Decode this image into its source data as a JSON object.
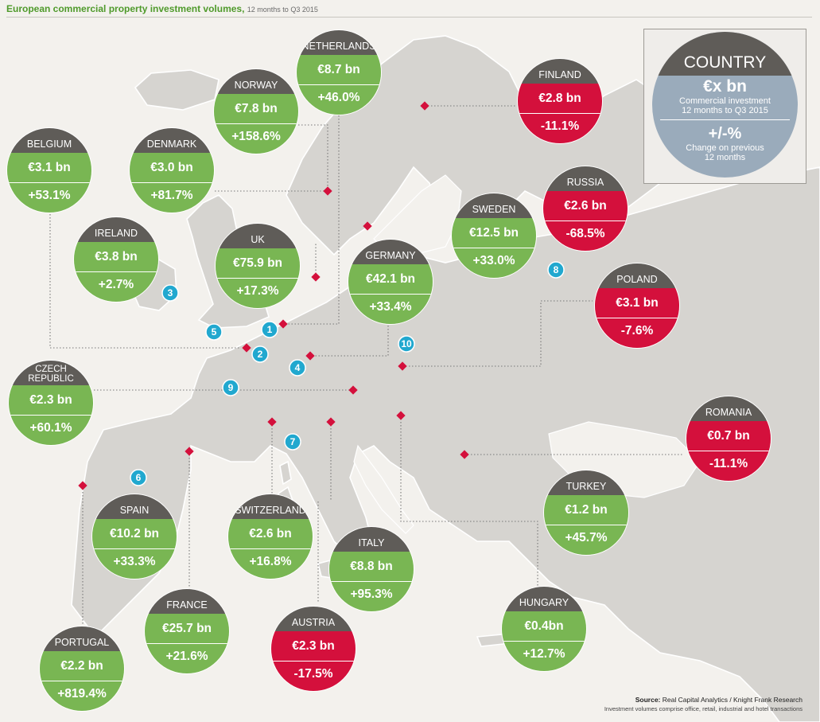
{
  "title": {
    "main": "European commercial property investment volumes,",
    "sub": "12 months to Q3 2015"
  },
  "legend": {
    "country": "COUNTRY",
    "value": "€x bn",
    "value_line1": "Commercial investment",
    "value_line2": "12 months to Q3 2015",
    "change": "+/-%",
    "change_line1": "Change on previous",
    "change_line2": "12 months"
  },
  "colors": {
    "increase": "#79b653",
    "decrease": "#d4103c",
    "header": "#5f5c58",
    "badge": "#21a8cf"
  },
  "countries": [
    {
      "id": "netherlands",
      "name": "NETHERLANDS",
      "value": "€8.7 bn",
      "change": "+46.0%",
      "status": "up"
    },
    {
      "id": "norway",
      "name": "NORWAY",
      "value": "€7.8 bn",
      "change": "+158.6%",
      "status": "up"
    },
    {
      "id": "finland",
      "name": "FINLAND",
      "value": "€2.8 bn",
      "change": "-11.1%",
      "status": "down"
    },
    {
      "id": "belgium",
      "name": "BELGIUM",
      "value": "€3.1 bn",
      "change": "+53.1%",
      "status": "up"
    },
    {
      "id": "denmark",
      "name": "DENMARK",
      "value": "€3.0 bn",
      "change": "+81.7%",
      "status": "up"
    },
    {
      "id": "russia",
      "name": "RUSSIA",
      "value": "€2.6 bn",
      "change": "-68.5%",
      "status": "down"
    },
    {
      "id": "sweden",
      "name": "SWEDEN",
      "value": "€12.5 bn",
      "change": "+33.0%",
      "status": "up"
    },
    {
      "id": "ireland",
      "name": "IRELAND",
      "value": "€3.8 bn",
      "change": "+2.7%",
      "status": "up"
    },
    {
      "id": "uk",
      "name": "UK",
      "value": "€75.9 bn",
      "change": "+17.3%",
      "status": "up"
    },
    {
      "id": "germany",
      "name": "GERMANY",
      "value": "€42.1 bn",
      "change": "+33.4%",
      "status": "up"
    },
    {
      "id": "poland",
      "name": "POLAND",
      "value": "€3.1 bn",
      "change": "-7.6%",
      "status": "down"
    },
    {
      "id": "czech",
      "name_line1": "CZECH",
      "name_line2": "REPUBLIC",
      "value": "€2.3 bn",
      "change": "+60.1%",
      "status": "up"
    },
    {
      "id": "romania",
      "name": "ROMANIA",
      "value": "€0.7 bn",
      "change": "-11.1%",
      "status": "down"
    },
    {
      "id": "turkey",
      "name": "TURKEY",
      "value": "€1.2 bn",
      "change": "+45.7%",
      "status": "up"
    },
    {
      "id": "spain",
      "name": "SPAIN",
      "value": "€10.2 bn",
      "change": "+33.3%",
      "status": "up"
    },
    {
      "id": "switzerland",
      "name": "SWITZERLAND",
      "value": "€2.6 bn",
      "change": "+16.8%",
      "status": "up"
    },
    {
      "id": "italy",
      "name": "ITALY",
      "value": "€8.8 bn",
      "change": "+95.3%",
      "status": "up"
    },
    {
      "id": "france",
      "name": "FRANCE",
      "value": "€25.7 bn",
      "change": "+21.6%",
      "status": "up"
    },
    {
      "id": "hungary",
      "name": "HUNGARY",
      "value": "€0.4bn",
      "change": "+12.7%",
      "status": "up"
    },
    {
      "id": "austria",
      "name": "AUSTRIA",
      "value": "€2.3 bn",
      "change": "-17.5%",
      "status": "down"
    },
    {
      "id": "portugal",
      "name": "PORTUGAL",
      "value": "€2.2 bn",
      "change": "+819.4%",
      "status": "up"
    }
  ],
  "badges": [
    "1",
    "2",
    "3",
    "4",
    "5",
    "6",
    "7",
    "8",
    "9",
    "10"
  ],
  "source": {
    "label": "Source:",
    "text": "Real Capital Analytics / Knight Frank Research",
    "note": "Investment volumes comprise office, retail, industrial and hotel transactions"
  }
}
